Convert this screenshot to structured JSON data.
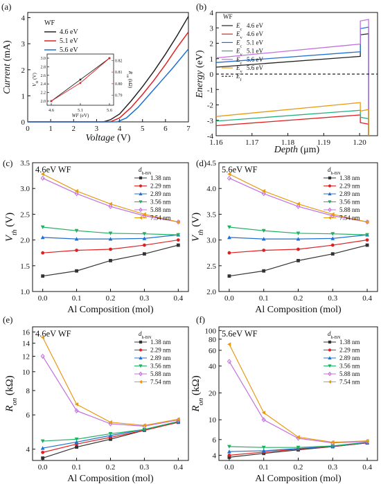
{
  "chart_data": [
    {
      "id": "a",
      "panel_label": "(a)",
      "type": "line",
      "xlabel": "Voltage (V)",
      "ylabel": "Current (mA)",
      "xlim": [
        0,
        7
      ],
      "ylim": [
        0,
        4.2
      ],
      "xticks": [
        "0",
        "1",
        "2",
        "3",
        "4",
        "5",
        "6",
        "7"
      ],
      "yticks": [
        "0",
        "1",
        "2",
        "3",
        "4"
      ],
      "legend_title": "WF",
      "series": [
        {
          "name": "4.6 eV",
          "color": "#222222",
          "x": [
            0,
            3.3,
            3.6,
            4.0,
            4.5,
            5.0,
            5.5,
            6.0,
            6.5,
            7.0
          ],
          "y": [
            0,
            0,
            0.08,
            0.3,
            0.8,
            1.35,
            1.95,
            2.6,
            3.3,
            4.05
          ]
        },
        {
          "name": "5.1 eV",
          "color": "#e02020",
          "x": [
            0,
            3.6,
            4.0,
            4.5,
            5.0,
            5.5,
            6.0,
            6.5,
            7.0
          ],
          "y": [
            0,
            0,
            0.15,
            0.55,
            1.05,
            1.6,
            2.2,
            2.85,
            3.45
          ]
        },
        {
          "name": "5.6 eV",
          "color": "#1f6fd0",
          "x": [
            0,
            3.9,
            4.3,
            4.8,
            5.3,
            5.8,
            6.3,
            7.0
          ],
          "y": [
            0,
            0,
            0.15,
            0.55,
            1.05,
            1.55,
            2.05,
            2.8
          ]
        }
      ],
      "inset": {
        "xlabel": "WF (eV)",
        "ylabel_left": "V_th (V)",
        "ylabel_right": "R_on (kΩ)",
        "xticks": [
          "4.6",
          "5.1",
          "5.6"
        ],
        "yticks_left": [
          "2.0",
          "2.2",
          "2.4",
          "2.6",
          "2.8",
          "3.0"
        ],
        "yticks_right": [
          "0.79",
          "0.80",
          "0.81",
          "0.82"
        ],
        "x": [
          4.6,
          5.1,
          5.6
        ],
        "vth": [
          2.0,
          2.5,
          3.0
        ],
        "ron": [
          0.7837,
          0.7997,
          0.8215
        ]
      }
    },
    {
      "id": "b",
      "panel_label": "(b)",
      "type": "line",
      "xlabel": "Depth (μm)",
      "ylabel": "Energy (eV)",
      "xlim": [
        1.16,
        1.205
      ],
      "ylim": [
        -4,
        4
      ],
      "xticks": [
        "1.16",
        "1.17",
        "1.18",
        "1.19",
        "1.20"
      ],
      "yticks": [
        "-4",
        "-3",
        "-2",
        "-1",
        "0",
        "1",
        "2",
        "3",
        "4"
      ],
      "legend_title": "WF",
      "legend": [
        {
          "sym": "E_c",
          "wf": "4.6 eV",
          "color": "#222222"
        },
        {
          "sym": "E_v",
          "wf": "4.6 eV",
          "color": "#e02020"
        },
        {
          "sym": "E_c",
          "wf": "5.1 eV",
          "color": "#1f6fd0"
        },
        {
          "sym": "E_v",
          "wf": "5.1 eV",
          "color": "#20b080"
        },
        {
          "sym": "E_c",
          "wf": "5.6 eV",
          "color": "#c070e0"
        },
        {
          "sym": "E_v",
          "wf": "5.6 eV",
          "color": "#e89a10"
        },
        {
          "sym": "E_f",
          "wf": "",
          "color": "#222222"
        }
      ],
      "series": [
        {
          "color": "#222222",
          "x": [
            1.16,
            1.2002,
            1.2002,
            1.2025,
            1.2025
          ],
          "y": [
            0.45,
            1.15,
            2.55,
            2.62,
            -4
          ]
        },
        {
          "color": "#1f6fd0",
          "x": [
            1.16,
            1.2002,
            1.2002,
            1.2025,
            1.2025
          ],
          "y": [
            0.75,
            1.45,
            2.95,
            3.05,
            -4
          ]
        },
        {
          "color": "#c070e0",
          "x": [
            1.16,
            1.2002,
            1.2002,
            1.2025,
            1.2025
          ],
          "y": [
            1.05,
            1.95,
            3.45,
            3.55,
            -4
          ]
        },
        {
          "color": "#e02020",
          "x": [
            1.16,
            1.2002,
            1.2002,
            1.2025,
            1.2025
          ],
          "y": [
            -3.35,
            -2.65,
            -3.15,
            -3.25,
            -4
          ]
        },
        {
          "color": "#20b080",
          "x": [
            1.16,
            1.2002,
            1.2002,
            1.2025,
            1.2025
          ],
          "y": [
            -3.05,
            -2.35,
            -2.8,
            -2.9,
            -4
          ]
        },
        {
          "color": "#e89a10",
          "x": [
            1.16,
            1.2002,
            1.2002,
            1.2025,
            1.2025
          ],
          "y": [
            -2.75,
            -1.85,
            -2.4,
            -2.3,
            -4
          ]
        },
        {
          "color": "#222222",
          "dash": true,
          "x": [
            1.16,
            1.205
          ],
          "y": [
            0,
            0
          ]
        }
      ]
    },
    {
      "id": "c",
      "panel_label": "(c)",
      "type": "line",
      "title_text": "4.6eV  WF",
      "xlabel": "Al Composition (mol)",
      "ylabel": "V_th (V)",
      "xlim": [
        -0.03,
        0.43
      ],
      "ylim": [
        1.0,
        3.5
      ],
      "xticks": [
        "0.0",
        "0.1",
        "0.2",
        "0.3",
        "0.4"
      ],
      "yticks": [
        "1.0",
        "1.5",
        "2.0",
        "2.5",
        "3.0",
        "3.5"
      ],
      "legend_title": "d_h-BN",
      "x": [
        0,
        0.1,
        0.2,
        0.3,
        0.4
      ],
      "series": [
        {
          "name": "1.38 nm",
          "color": "#333333",
          "marker": "square",
          "values": [
            1.3,
            1.4,
            1.6,
            1.73,
            1.9
          ]
        },
        {
          "name": "2.29 nm",
          "color": "#e02020",
          "marker": "circle",
          "values": [
            1.75,
            1.8,
            1.82,
            1.9,
            2.0
          ]
        },
        {
          "name": "2.89 nm",
          "color": "#1f6fd0",
          "marker": "triangle",
          "values": [
            2.05,
            2.02,
            2.02,
            2.03,
            2.1
          ]
        },
        {
          "name": "3.56 nm",
          "color": "#20b060",
          "marker": "triangle-down",
          "values": [
            2.25,
            2.18,
            2.13,
            2.12,
            2.1
          ]
        },
        {
          "name": "5.88 nm",
          "color": "#c070e0",
          "marker": "diamond",
          "values": [
            3.2,
            2.9,
            2.65,
            2.47,
            2.35
          ]
        },
        {
          "name": "7.54 nm",
          "color": "#e89a10",
          "marker": "left-tri",
          "values": [
            3.28,
            2.95,
            2.7,
            2.5,
            2.35
          ]
        }
      ]
    },
    {
      "id": "d",
      "panel_label": "(d)",
      "type": "line",
      "title_text": "5.6eV  WF",
      "xlabel": "Al Composition (mol)",
      "ylabel": "V_th (V)",
      "xlim": [
        -0.03,
        0.43
      ],
      "ylim": [
        2.0,
        4.5
      ],
      "xticks": [
        "0.0",
        "0.1",
        "0.2",
        "0.3",
        "0.4"
      ],
      "yticks": [
        "2.0",
        "2.5",
        "3.0",
        "3.5",
        "4.0",
        "4.5"
      ],
      "legend_title": "d_h-BN",
      "x": [
        0,
        0.1,
        0.2,
        0.3,
        0.4
      ],
      "series": [
        {
          "name": "1.38 nm",
          "color": "#333333",
          "marker": "square",
          "values": [
            2.3,
            2.4,
            2.6,
            2.73,
            2.9
          ]
        },
        {
          "name": "2.29 nm",
          "color": "#e02020",
          "marker": "circle",
          "values": [
            2.75,
            2.8,
            2.82,
            2.9,
            3.0
          ]
        },
        {
          "name": "2.89 nm",
          "color": "#1f6fd0",
          "marker": "triangle",
          "values": [
            3.05,
            3.02,
            3.02,
            3.03,
            3.1
          ]
        },
        {
          "name": "3.56 nm",
          "color": "#20b060",
          "marker": "triangle-down",
          "values": [
            3.25,
            3.18,
            3.13,
            3.12,
            3.1
          ]
        },
        {
          "name": "5.88 nm",
          "color": "#c070e0",
          "marker": "diamond",
          "values": [
            4.2,
            3.9,
            3.65,
            3.47,
            3.35
          ]
        },
        {
          "name": "7.54 nm",
          "color": "#e89a10",
          "marker": "left-tri",
          "values": [
            4.28,
            3.95,
            3.7,
            3.5,
            3.35
          ]
        }
      ]
    },
    {
      "id": "e",
      "panel_label": "(e)",
      "type": "line",
      "title_text": "4.6eV  WF",
      "xlabel": "Al Composition (mol)",
      "ylabel": "R_on (kΩ)",
      "xscale": "linear",
      "yscale": "log",
      "xlim": [
        -0.03,
        0.43
      ],
      "ylim": [
        3.5,
        17
      ],
      "xticks": [
        "0.0",
        "0.1",
        "0.2",
        "0.3",
        "0.4"
      ],
      "ytick_values": [
        4,
        6,
        8,
        10,
        12,
        14,
        16
      ],
      "yticks": [
        "4",
        "6",
        "8",
        "10",
        "12",
        "14",
        "16"
      ],
      "legend_title": "d_h-BN",
      "x": [
        0,
        0.1,
        0.2,
        0.3,
        0.4
      ],
      "series": [
        {
          "name": "1.38 nm",
          "color": "#333333",
          "marker": "square",
          "values": [
            3.6,
            4.1,
            4.5,
            5.0,
            5.5
          ]
        },
        {
          "name": "2.29 nm",
          "color": "#e02020",
          "marker": "circle",
          "values": [
            3.85,
            4.25,
            4.6,
            5.0,
            5.5
          ]
        },
        {
          "name": "2.89 nm",
          "color": "#1f6fd0",
          "marker": "triangle",
          "values": [
            4.05,
            4.35,
            4.7,
            5.05,
            5.55
          ]
        },
        {
          "name": "3.56 nm",
          "color": "#20b060",
          "marker": "triangle-down",
          "values": [
            4.4,
            4.5,
            4.8,
            5.05,
            5.55
          ]
        },
        {
          "name": "5.88 nm",
          "color": "#c070e0",
          "marker": "diamond",
          "values": [
            12,
            6.3,
            5.4,
            5.25,
            5.65
          ]
        },
        {
          "name": "7.54 nm",
          "color": "#e89a10",
          "marker": "left-tri",
          "values": [
            15,
            6.8,
            5.5,
            5.3,
            5.7
          ]
        }
      ]
    },
    {
      "id": "f",
      "panel_label": "(f)",
      "type": "line",
      "title_text": "5.6eV  WF",
      "xlabel": "Al Composition (mol)",
      "ylabel": "R_on (kΩ)",
      "xscale": "linear",
      "yscale": "log",
      "xlim": [
        -0.03,
        0.43
      ],
      "ylim": [
        3.5,
        110
      ],
      "xticks": [
        "0.0",
        "0.1",
        "0.2",
        "0.3",
        "0.4"
      ],
      "ytick_values": [
        4,
        6,
        10,
        20,
        40,
        60,
        80,
        100
      ],
      "yticks": [
        "4",
        "6",
        "10",
        "20",
        "40",
        "60",
        "80",
        "100"
      ],
      "legend_title": "d_h-BN",
      "x": [
        0,
        0.1,
        0.2,
        0.3,
        0.4
      ],
      "series": [
        {
          "name": "1.38 nm",
          "color": "#333333",
          "marker": "square",
          "values": [
            3.8,
            4.2,
            4.6,
            5.0,
            5.5
          ]
        },
        {
          "name": "2.29 nm",
          "color": "#e02020",
          "marker": "circle",
          "values": [
            4.0,
            4.35,
            4.7,
            5.0,
            5.5
          ]
        },
        {
          "name": "2.89 nm",
          "color": "#1f6fd0",
          "marker": "triangle",
          "values": [
            4.4,
            4.5,
            4.75,
            5.05,
            5.55
          ]
        },
        {
          "name": "3.56 nm",
          "color": "#20b060",
          "marker": "triangle-down",
          "values": [
            5.0,
            4.9,
            4.9,
            5.1,
            5.6
          ]
        },
        {
          "name": "5.88 nm",
          "color": "#c070e0",
          "marker": "diamond",
          "values": [
            45,
            10,
            6.2,
            5.5,
            5.7
          ]
        },
        {
          "name": "7.54 nm",
          "color": "#e89a10",
          "marker": "left-tri",
          "values": [
            70,
            12,
            6.4,
            5.6,
            5.8
          ]
        }
      ]
    }
  ]
}
